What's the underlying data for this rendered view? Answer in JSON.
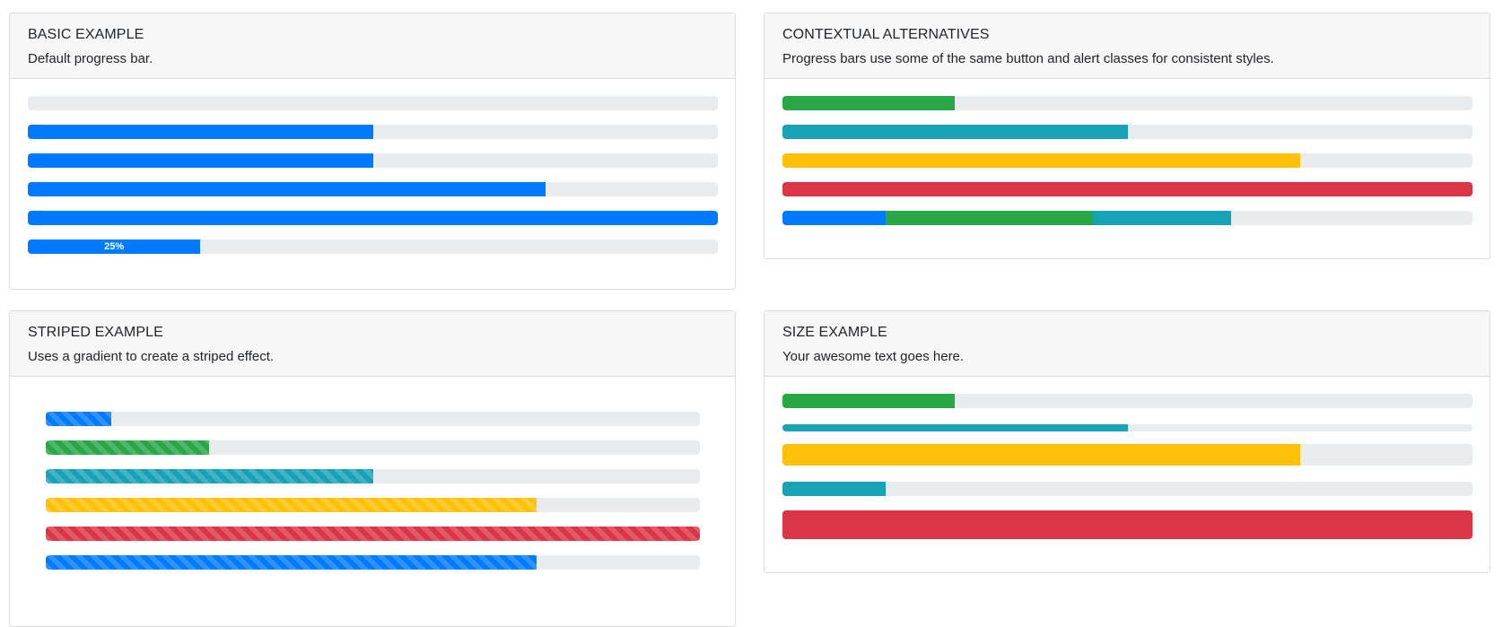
{
  "colors": {
    "primary": "#007bff",
    "success": "#28a745",
    "info": "#17a2b8",
    "warning": "#ffc107",
    "danger": "#dc3545",
    "track": "#e9ecef"
  },
  "basic": {
    "title": "BASIC EXAMPLE",
    "subtitle": "Default progress bar.",
    "bars": [
      {
        "segments": [
          {
            "value": 0,
            "color": "primary",
            "label": ""
          }
        ]
      },
      {
        "segments": [
          {
            "value": 50,
            "color": "primary",
            "label": ""
          }
        ]
      },
      {
        "segments": [
          {
            "value": 50,
            "color": "primary",
            "label": ""
          }
        ]
      },
      {
        "segments": [
          {
            "value": 75,
            "color": "primary",
            "label": ""
          }
        ]
      },
      {
        "segments": [
          {
            "value": 100,
            "color": "primary",
            "label": ""
          }
        ]
      },
      {
        "segments": [
          {
            "value": 25,
            "color": "primary",
            "label": "25%"
          }
        ]
      }
    ]
  },
  "contextual": {
    "title": "CONTEXTUAL ALTERNATIVES",
    "subtitle": "Progress bars use some of the same button and alert classes for consistent styles.",
    "bars": [
      {
        "segments": [
          {
            "value": 25,
            "color": "success",
            "label": ""
          }
        ]
      },
      {
        "segments": [
          {
            "value": 50,
            "color": "info",
            "label": ""
          }
        ]
      },
      {
        "segments": [
          {
            "value": 75,
            "color": "warning",
            "label": ""
          }
        ]
      },
      {
        "segments": [
          {
            "value": 100,
            "color": "danger",
            "label": ""
          }
        ]
      },
      {
        "segments": [
          {
            "value": 15,
            "color": "primary",
            "label": ""
          },
          {
            "value": 30,
            "color": "success",
            "label": ""
          },
          {
            "value": 20,
            "color": "info",
            "label": ""
          }
        ]
      }
    ]
  },
  "striped": {
    "title": "STRIPED EXAMPLE",
    "subtitle": "Uses a gradient to create a striped effect.",
    "bars": [
      {
        "segments": [
          {
            "value": 10,
            "color": "primary",
            "label": ""
          }
        ]
      },
      {
        "segments": [
          {
            "value": 25,
            "color": "success",
            "label": ""
          }
        ]
      },
      {
        "segments": [
          {
            "value": 50,
            "color": "info",
            "label": ""
          }
        ]
      },
      {
        "segments": [
          {
            "value": 75,
            "color": "warning",
            "label": ""
          }
        ]
      },
      {
        "segments": [
          {
            "value": 100,
            "color": "danger",
            "label": ""
          }
        ]
      },
      {
        "segments": [
          {
            "value": 75,
            "color": "primary",
            "label": ""
          }
        ]
      }
    ]
  },
  "size": {
    "title": "SIZE EXAMPLE",
    "subtitle": "Your awesome text goes here.",
    "bars": [
      {
        "segments": [
          {
            "value": 25,
            "color": "success",
            "label": ""
          }
        ]
      },
      {
        "segments": [
          {
            "value": 50,
            "color": "info",
            "label": ""
          }
        ]
      },
      {
        "segments": [
          {
            "value": 75,
            "color": "warning",
            "label": ""
          }
        ]
      },
      {
        "segments": [
          {
            "value": 15,
            "color": "info",
            "label": ""
          }
        ]
      },
      {
        "segments": [
          {
            "value": 100,
            "color": "danger",
            "label": ""
          }
        ]
      }
    ]
  }
}
